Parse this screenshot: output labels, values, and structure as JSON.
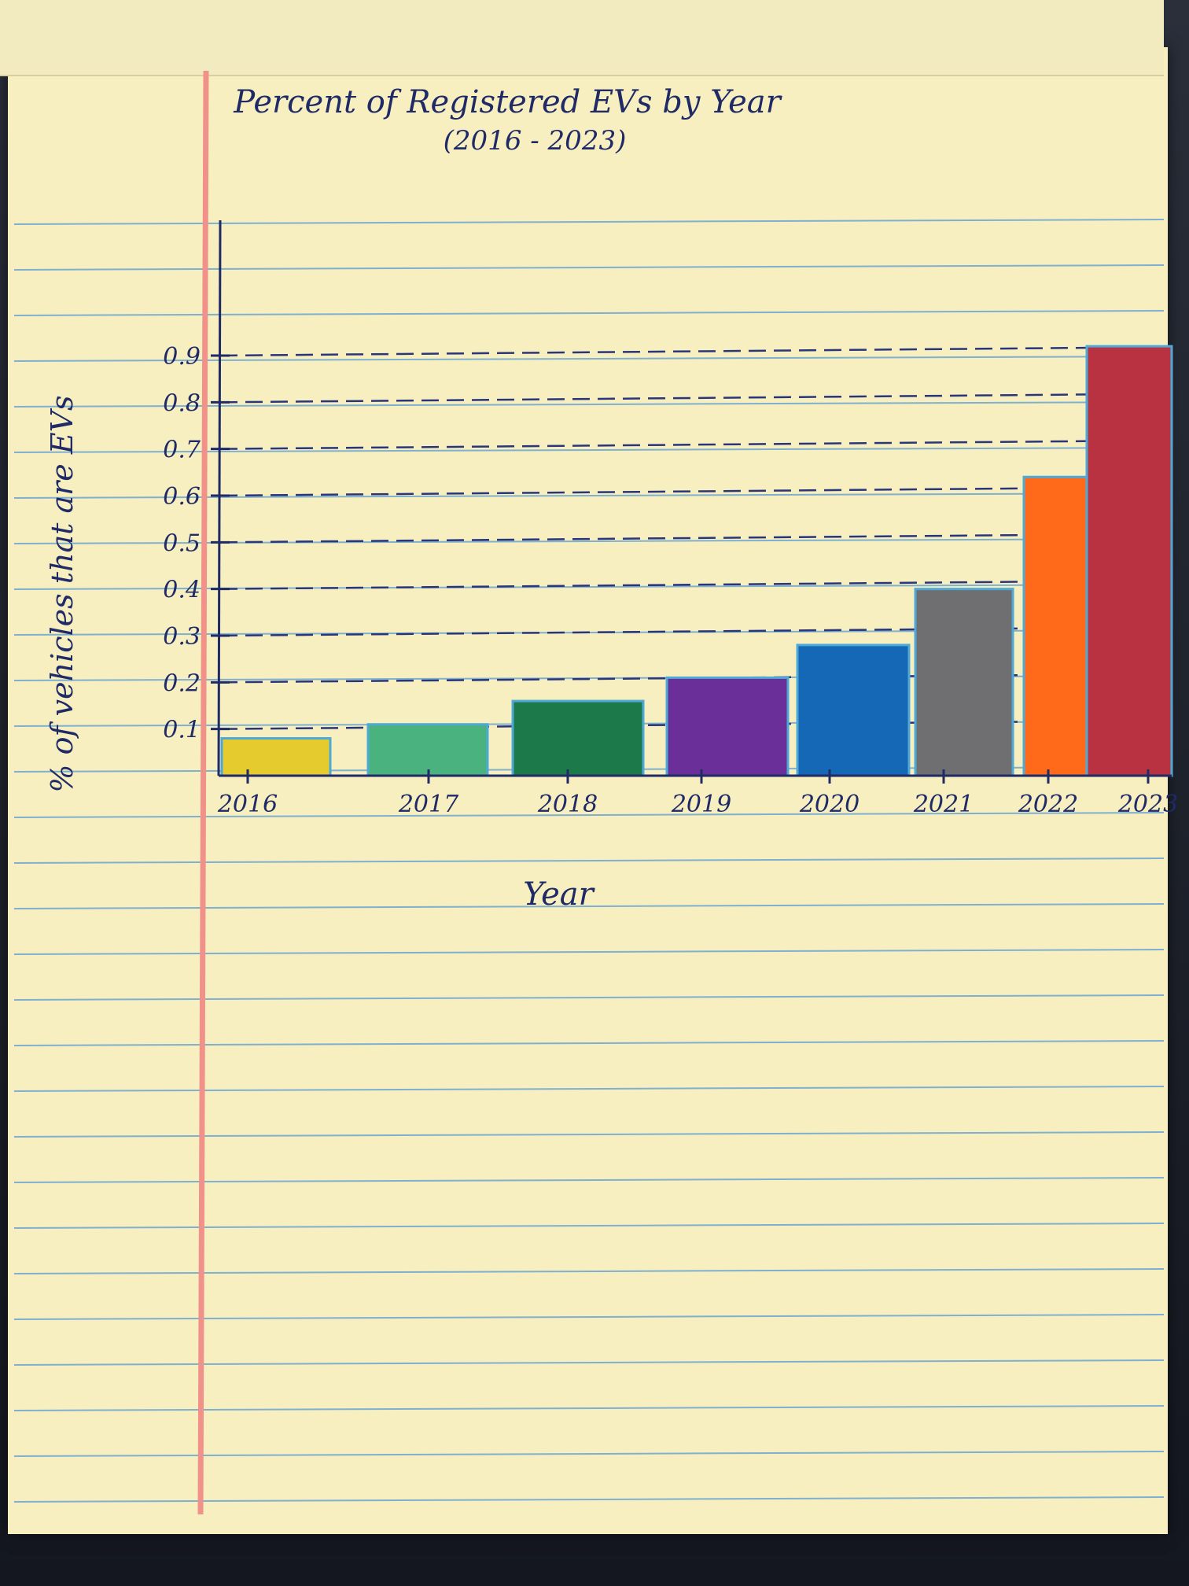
{
  "chart_data": {
    "type": "bar",
    "title": "Percent of Registered EVs by Year",
    "subtitle": "(2016 - 2023)",
    "xlabel": "Year",
    "ylabel": "% of vehicles that are EVs",
    "categories": [
      "2016",
      "2017",
      "2018",
      "2019",
      "2020",
      "2021",
      "2022",
      "2023"
    ],
    "values": [
      0.08,
      0.11,
      0.16,
      0.21,
      0.28,
      0.4,
      0.64,
      0.92
    ],
    "bar_colors": [
      "#e5cb2e",
      "#49b27e",
      "#1c7a4a",
      "#6a2f98",
      "#1468b5",
      "#6f6f72",
      "#ff6a1a",
      "#b83242"
    ],
    "y_ticks": [
      "0.1",
      "0.2",
      "0.3",
      "0.4",
      "0.5",
      "0.6",
      "0.7",
      "0.8",
      "0.9"
    ],
    "ylim": [
      0,
      0.9
    ],
    "grid": true,
    "legend": "none"
  }
}
